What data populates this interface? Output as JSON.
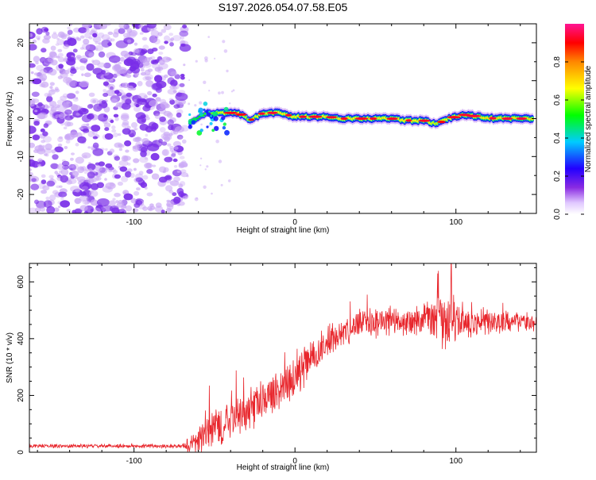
{
  "title": "S197.2026.054.07.58.E05",
  "colors": {
    "snr_line": "#e8262c",
    "noise_dot": "#7a2ee8",
    "noise_dot_light": "#c9a6f5"
  },
  "chart_data": [
    {
      "type": "heatmap",
      "title": "S197.2026.054.07.58.E05",
      "xlabel": "Height of straight line (km)",
      "ylabel": "Frequency (Hz)",
      "xlim": [
        -165,
        150
      ],
      "ylim": [
        -25,
        25
      ],
      "xticks": [
        -100,
        0,
        100
      ],
      "yticks": [
        -20,
        -10,
        0,
        10,
        20
      ],
      "colorbar": {
        "label": "Normalized spectral amplitude",
        "range": [
          0.0,
          1.0
        ],
        "ticks": [
          "0.0",
          "0.2",
          "0.4",
          "0.6",
          "0.8"
        ],
        "colormap": [
          "#ffffff",
          "#8a2be2",
          "#0000ff",
          "#00ccff",
          "#00ff00",
          "#ffff00",
          "#ff8800",
          "#ff0000",
          "#ff1493"
        ]
      },
      "noise_region": {
        "x_range": [
          -165,
          -68
        ],
        "freq_range": [
          -25,
          25
        ]
      },
      "signal_track": {
        "x": [
          -65,
          -55,
          -45,
          -35,
          -28,
          -20,
          -10,
          0,
          10,
          20,
          30,
          40,
          50,
          60,
          70,
          80,
          88,
          95,
          105,
          115,
          125,
          135,
          148
        ],
        "freq": [
          -1,
          1.5,
          1.5,
          1.5,
          -0.5,
          1.5,
          1.5,
          0.5,
          0.5,
          0.5,
          0,
          0,
          0,
          0,
          -0.5,
          -0.5,
          -1.5,
          0,
          1,
          0.5,
          0,
          0,
          0
        ],
        "amplitude": [
          0.3,
          0.5,
          0.75,
          0.85,
          0.6,
          0.9,
          0.85,
          0.85,
          0.85,
          0.85,
          0.85,
          0.85,
          0.85,
          0.85,
          0.85,
          0.85,
          0.7,
          0.8,
          0.85,
          0.9,
          0.9,
          0.9,
          0.9
        ]
      }
    },
    {
      "type": "line",
      "title": "",
      "xlabel": "Height of straight line (km)",
      "ylabel": "SNR (10 * v/v)",
      "xlim": [
        -165,
        150
      ],
      "ylim": [
        0,
        665
      ],
      "xticks": [
        -100,
        0,
        100
      ],
      "yticks": [
        0,
        200,
        400,
        600
      ],
      "series": [
        {
          "name": "SNR",
          "envelope_x": [
            -165,
            -70,
            -62,
            -55,
            -45,
            -35,
            -25,
            -15,
            -5,
            5,
            15,
            25,
            35,
            45,
            55,
            65,
            75,
            85,
            95,
            105,
            115,
            125,
            135,
            150
          ],
          "envelope_mean": [
            22,
            22,
            30,
            70,
            100,
            130,
            160,
            200,
            240,
            300,
            360,
            410,
            440,
            455,
            460,
            460,
            465,
            470,
            460,
            460,
            460,
            460,
            460,
            460
          ],
          "envelope_amp": [
            8,
            8,
            60,
            90,
            80,
            80,
            80,
            80,
            80,
            80,
            70,
            60,
            60,
            60,
            60,
            60,
            60,
            90,
            110,
            70,
            60,
            50,
            40,
            40
          ],
          "peak_value": 665
        }
      ]
    }
  ]
}
